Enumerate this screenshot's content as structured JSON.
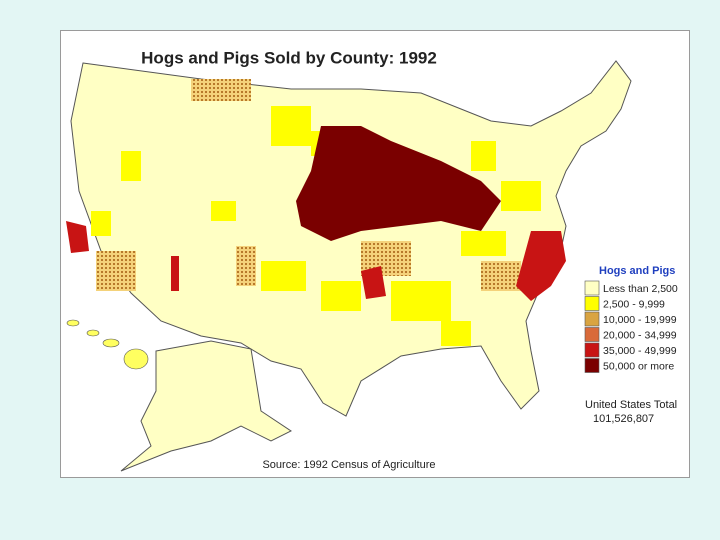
{
  "title": "Hogs and Pigs Sold by County:  1992",
  "legend": {
    "title": "Hogs and Pigs",
    "items": [
      {
        "label": "Less than 2,500",
        "color": "#ffffc4"
      },
      {
        "label": "2,500 - 9,999",
        "color": "#ffff00"
      },
      {
        "label": "10,000 - 19,999",
        "color": "#d9a441"
      },
      {
        "label": "20,000 - 34,999",
        "color": "#d96a3a"
      },
      {
        "label": "35,000 - 49,999",
        "color": "#c81414"
      },
      {
        "label": "50,000 or more",
        "color": "#7a0000"
      }
    ]
  },
  "total": {
    "label": "United States Total",
    "value": "101,526,807"
  },
  "source": "Source:  1992 Census of Agriculture"
}
